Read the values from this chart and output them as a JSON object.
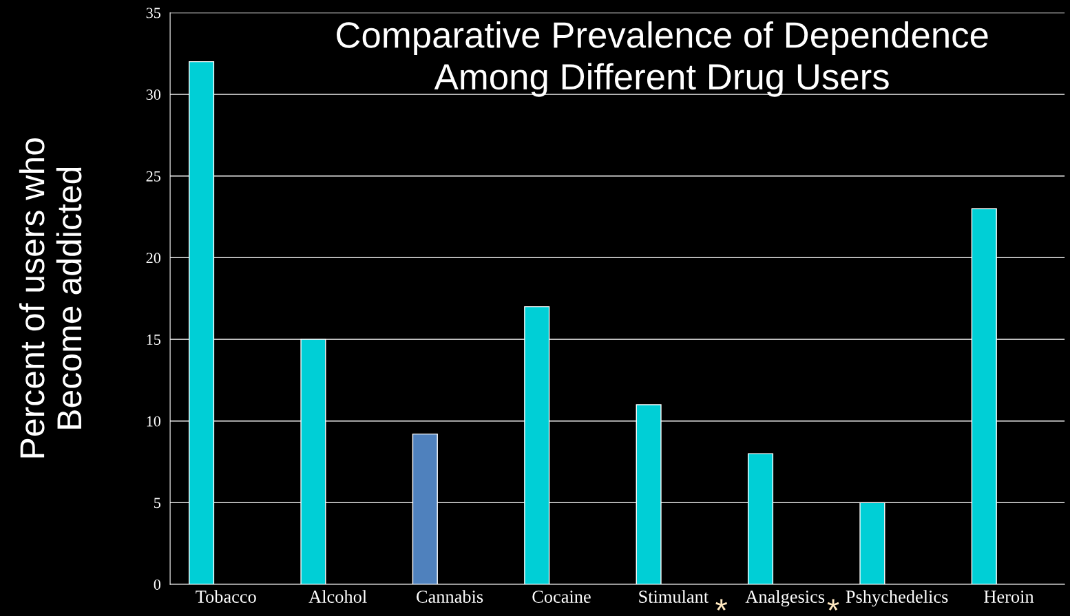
{
  "chart_data": {
    "type": "bar",
    "title": "Comparative Prevalence of Dependence\nAmong Different Drug Users",
    "ylabel": "Percent of users who\nBecome addicted",
    "categories": [
      "Tobacco",
      "Alcohol",
      "Cannabis",
      "Cocaine",
      "Stimulant",
      "Analgesics",
      "Pshychedelics",
      "Heroin"
    ],
    "values": [
      32,
      15,
      9.2,
      17,
      11,
      8,
      5,
      23
    ],
    "colors": [
      "#00cfd6",
      "#00cfd6",
      "#4f81bd",
      "#00cfd6",
      "#00cfd6",
      "#00cfd6",
      "#00cfd6",
      "#00cfd6"
    ],
    "ylim": [
      0,
      35
    ],
    "yticks": [
      0,
      5,
      10,
      15,
      20,
      25,
      30,
      35
    ],
    "grid": "y",
    "annotations": [
      "*",
      "*"
    ]
  }
}
